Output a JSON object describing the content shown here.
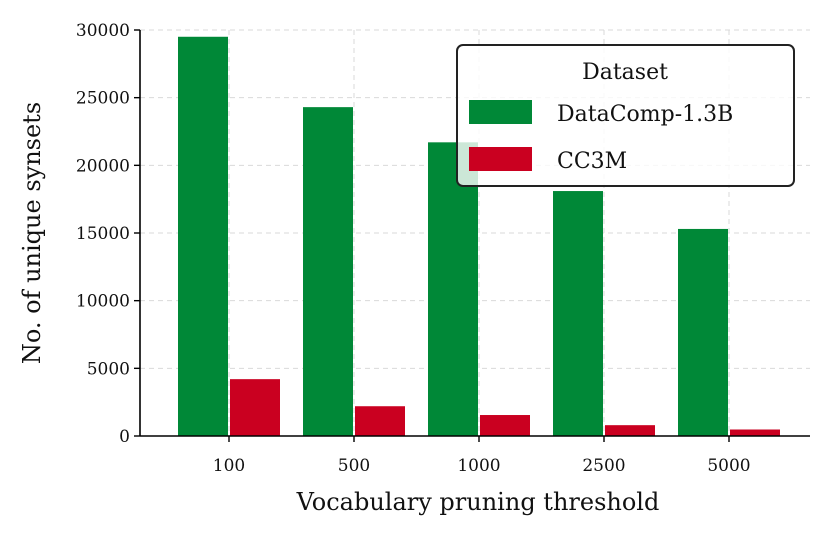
{
  "chart_data": {
    "type": "bar",
    "title": "",
    "xlabel": "Vocabulary pruning threshold",
    "ylabel": "No. of unique synsets",
    "categories": [
      "100",
      "500",
      "1000",
      "2500",
      "5000"
    ],
    "ylim": [
      0,
      30000
    ],
    "yticks": [
      0,
      5000,
      10000,
      15000,
      20000,
      25000,
      30000
    ],
    "grid": true,
    "legend": {
      "title": "Dataset",
      "placement": "top-right"
    },
    "series": [
      {
        "name": "DataComp-1.3B",
        "color": "#008837",
        "values": [
          29500,
          24300,
          21700,
          18100,
          15300
        ]
      },
      {
        "name": "CC3M",
        "color": "#ca0020",
        "values": [
          4200,
          2200,
          1550,
          800,
          480
        ]
      }
    ]
  }
}
